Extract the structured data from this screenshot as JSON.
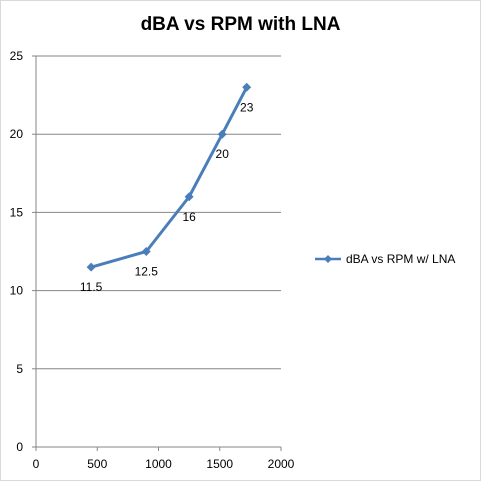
{
  "chart_data": {
    "type": "line",
    "title": "dBA vs RPM with LNA",
    "xlabel": "",
    "ylabel": "",
    "xlim": [
      0,
      2000
    ],
    "ylim": [
      0,
      25
    ],
    "x_ticks": [
      0,
      500,
      1000,
      1500,
      2000
    ],
    "y_ticks": [
      0,
      5,
      10,
      15,
      20,
      25
    ],
    "grid": "horizontal",
    "legend_position": "right",
    "series": [
      {
        "name": "dBA vs RPM w/ LNA",
        "color": "#4a7ebb",
        "marker": "diamond",
        "x": [
          450,
          900,
          1250,
          1520,
          1720
        ],
        "y": [
          11.5,
          12.5,
          16,
          20,
          23
        ],
        "data_labels": [
          "11.5",
          "12.5",
          "16",
          "20",
          "23"
        ]
      }
    ]
  }
}
